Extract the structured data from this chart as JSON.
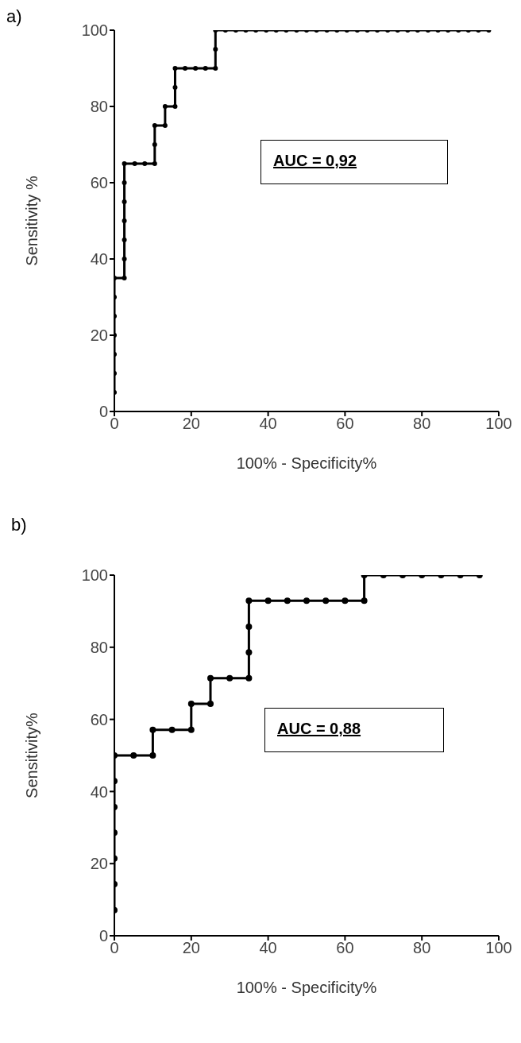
{
  "chart_data": [
    {
      "type": "line",
      "xlabel": "100% - Specificity%",
      "ylabel": "Sensitivity %",
      "annotations": [
        "a)",
        "AUC = 0,92"
      ],
      "color": "#000000",
      "marker": "circle",
      "line_style": "solid",
      "xlim": [
        0,
        100
      ],
      "ylim": [
        0,
        100
      ],
      "xticks": [
        0,
        20,
        40,
        60,
        80,
        100
      ],
      "yticks": [
        0,
        20,
        40,
        60,
        80,
        100
      ],
      "x": [
        0,
        0,
        0,
        0,
        0,
        0,
        0,
        2.6,
        2.6,
        2.6,
        2.6,
        2.6,
        2.6,
        2.6,
        5.3,
        7.9,
        10.5,
        10.5,
        10.5,
        13.2,
        13.2,
        15.8,
        15.8,
        15.8,
        18.4,
        21.1,
        23.7,
        26.3,
        26.3,
        26.3,
        28.9,
        31.6,
        34.2,
        36.8,
        39.5,
        42.1,
        44.7,
        47.4,
        50,
        52.6,
        55.3,
        57.9,
        60.5,
        63.2,
        65.8,
        68.4,
        71.1,
        73.7,
        76.3,
        78.9,
        81.6,
        84.2,
        86.8,
        89.5,
        92.1,
        94.7,
        97.4
      ],
      "values": [
        5,
        10,
        15,
        20,
        25,
        30,
        35,
        35,
        40,
        45,
        50,
        55,
        60,
        65,
        65,
        65,
        65,
        70,
        75,
        75,
        80,
        80,
        85,
        90,
        90,
        90,
        90,
        90,
        95,
        100,
        100,
        100,
        100,
        100,
        100,
        100,
        100,
        100,
        100,
        100,
        100,
        100,
        100,
        100,
        100,
        100,
        100,
        100,
        100,
        100,
        100,
        100,
        100,
        100,
        100,
        100,
        100
      ]
    },
    {
      "type": "line",
      "xlabel": "100% - Specificity%",
      "ylabel": "Sensitivity%",
      "annotations": [
        "b)",
        "AUC = 0,88"
      ],
      "color": "#000000",
      "marker": "circle",
      "line_style": "solid",
      "xlim": [
        0,
        100
      ],
      "ylim": [
        0,
        100
      ],
      "xticks": [
        0,
        20,
        40,
        60,
        80,
        100
      ],
      "yticks": [
        0,
        20,
        40,
        60,
        80,
        100
      ],
      "x": [
        0,
        0,
        0,
        0,
        0,
        0,
        0,
        5,
        10,
        10,
        15,
        20,
        20,
        25,
        25,
        30,
        35,
        35,
        35,
        35,
        40,
        45,
        50,
        55,
        60,
        65,
        65,
        70,
        75,
        80,
        85,
        90,
        95
      ],
      "values": [
        7.1,
        14.3,
        21.4,
        28.6,
        35.7,
        42.9,
        50,
        50,
        50,
        57.1,
        57.1,
        57.1,
        64.3,
        64.3,
        71.4,
        71.4,
        71.4,
        78.6,
        85.7,
        92.9,
        92.9,
        92.9,
        92.9,
        92.9,
        92.9,
        92.9,
        100,
        100,
        100,
        100,
        100,
        100,
        100
      ]
    }
  ]
}
